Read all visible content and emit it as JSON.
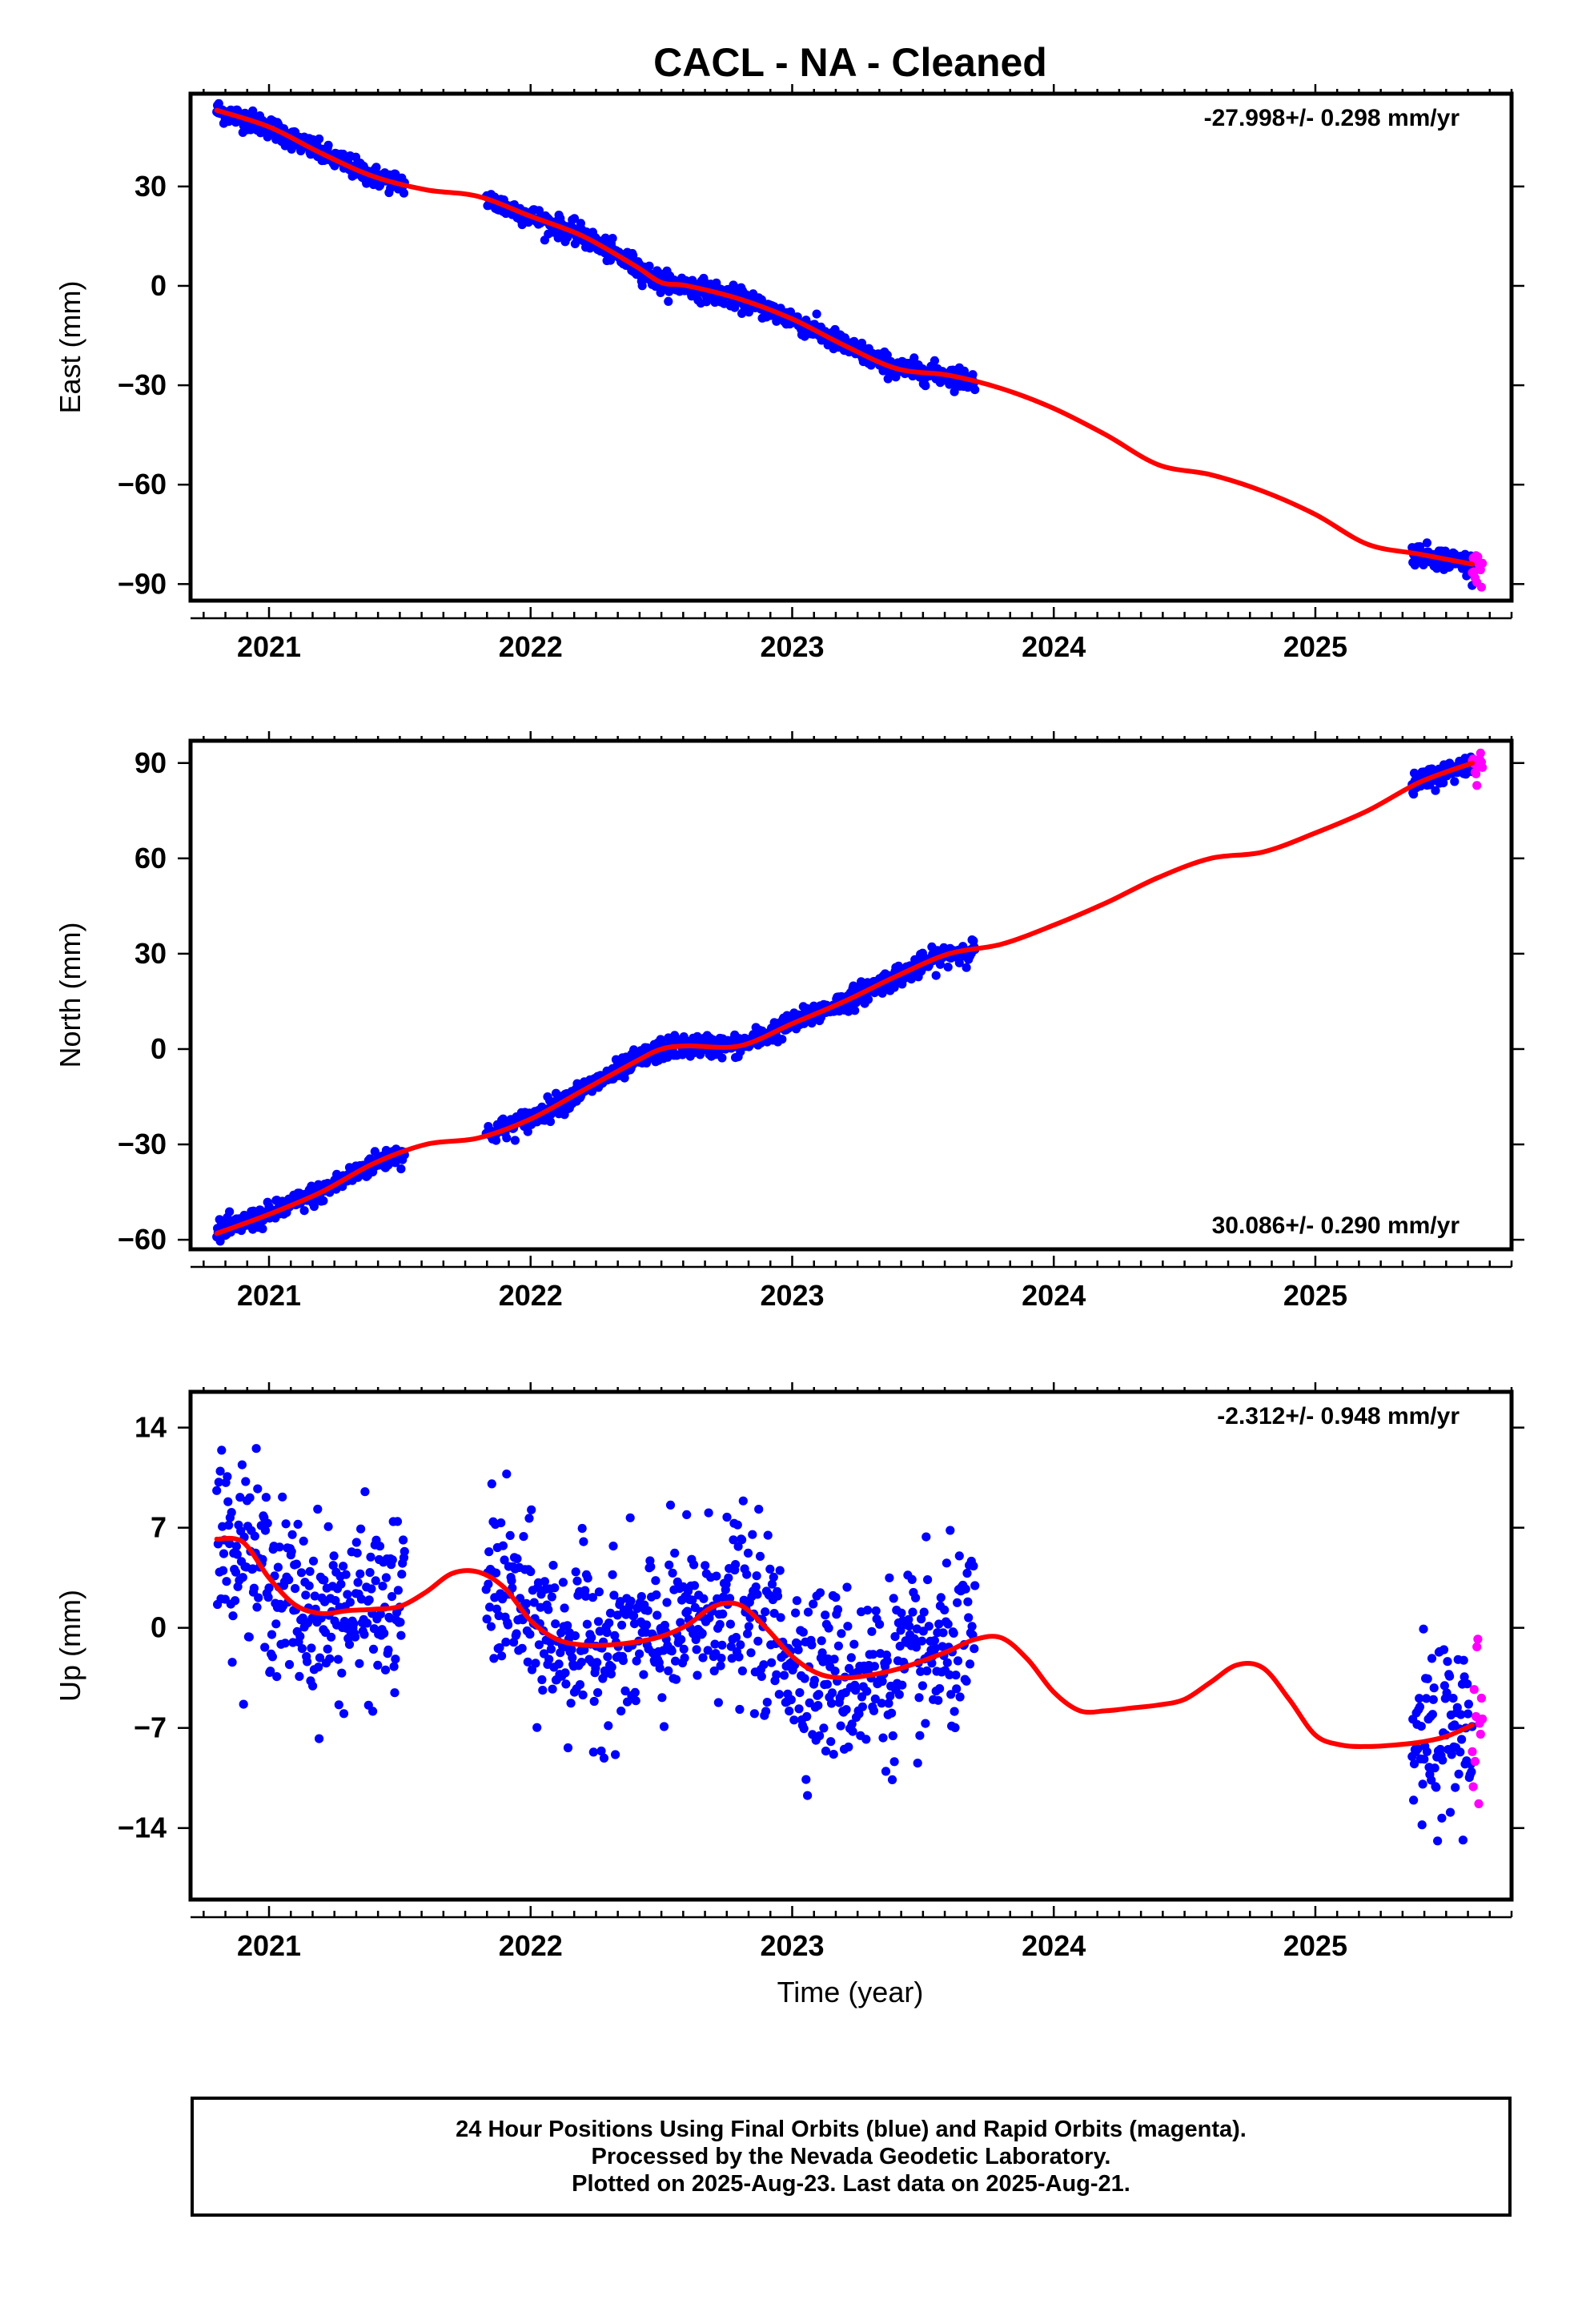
{
  "title": "CACL  - NA - Cleaned",
  "xlabel": "Time (year)",
  "colors": {
    "final": "#0000ff",
    "rapid": "#ff00ff",
    "model": "#ff0000",
    "axis": "#000000"
  },
  "chart_data": [
    {
      "type": "scatter",
      "panel": "east",
      "ylabel": "East (mm)",
      "rate_label": "-27.998+/- 0.298 mm/yr",
      "rate_position": "top-right",
      "xlim": [
        2020.7,
        2025.75
      ],
      "ylim": [
        -95,
        58
      ],
      "xticks": [
        2021,
        2022,
        2023,
        2024,
        2025
      ],
      "xtick_labels": [
        "2021",
        "2022",
        "2023",
        "2024",
        "2025"
      ],
      "yticks": [
        30,
        0,
        -30,
        -60,
        -90
      ],
      "ytick_labels": [
        "30",
        "0",
        "−30",
        "−60",
        "−90"
      ],
      "data_segments": [
        {
          "series": "final",
          "start": 2020.8,
          "end": 2021.52
        },
        {
          "series": "final",
          "start": 2021.83,
          "end": 2023.7
        },
        {
          "series": "final",
          "start": 2025.37,
          "end": 2025.6
        },
        {
          "series": "rapid",
          "start": 2025.6,
          "end": 2025.64
        }
      ],
      "model_curve": {
        "x": [
          2020.8,
          2021.0,
          2021.2,
          2021.4,
          2021.6,
          2021.8,
          2022.0,
          2022.2,
          2022.4,
          2022.5,
          2022.6,
          2022.8,
          2023.0,
          2023.2,
          2023.4,
          2023.6,
          2023.8,
          2024.0,
          2024.2,
          2024.4,
          2024.6,
          2024.8,
          2025.0,
          2025.2,
          2025.4,
          2025.6
        ],
        "y": [
          53,
          48,
          40,
          33,
          29,
          27,
          21,
          15,
          6,
          1,
          0,
          -4,
          -10,
          -18,
          -25,
          -27,
          -31,
          -37,
          -45,
          -54,
          -57,
          -62,
          -69,
          -78,
          -81,
          -84
        ]
      },
      "scatter": {
        "final_sd": 1.6,
        "rapid_sd": 3
      },
      "series": [
        {
          "name": "Final Orbits (blue)",
          "color": "#0000ff"
        },
        {
          "name": "Rapid Orbits (magenta)",
          "color": "#ff00ff"
        }
      ]
    },
    {
      "type": "scatter",
      "panel": "north",
      "ylabel": "North (mm)",
      "rate_label": "30.086+/- 0.290 mm/yr",
      "rate_position": "bottom-right",
      "xlim": [
        2020.7,
        2025.75
      ],
      "ylim": [
        -63,
        97
      ],
      "xticks": [
        2021,
        2022,
        2023,
        2024,
        2025
      ],
      "xtick_labels": [
        "2021",
        "2022",
        "2023",
        "2024",
        "2025"
      ],
      "yticks": [
        90,
        60,
        30,
        0,
        -30,
        -60
      ],
      "ytick_labels": [
        "90",
        "60",
        "30",
        "0",
        "−30",
        "−60"
      ],
      "data_segments": [
        {
          "series": "final",
          "start": 2020.8,
          "end": 2021.52
        },
        {
          "series": "final",
          "start": 2021.83,
          "end": 2023.7
        },
        {
          "series": "final",
          "start": 2025.37,
          "end": 2025.6
        },
        {
          "series": "rapid",
          "start": 2025.6,
          "end": 2025.64
        }
      ],
      "model_curve": {
        "x": [
          2020.8,
          2021.0,
          2021.2,
          2021.4,
          2021.6,
          2021.8,
          2022.0,
          2022.2,
          2022.4,
          2022.5,
          2022.6,
          2022.8,
          2023.0,
          2023.2,
          2023.4,
          2023.6,
          2023.8,
          2024.0,
          2024.2,
          2024.4,
          2024.6,
          2024.8,
          2025.0,
          2025.2,
          2025.4,
          2025.6
        ],
        "y": [
          -58,
          -52,
          -45,
          -36,
          -30,
          -28,
          -22,
          -13,
          -4,
          0,
          1,
          1,
          8,
          15,
          23,
          30,
          33,
          39,
          46,
          54,
          60,
          62,
          68,
          75,
          84,
          90
        ]
      },
      "scatter": {
        "final_sd": 1.7,
        "rapid_sd": 2.5
      },
      "series": [
        {
          "name": "Final Orbits (blue)",
          "color": "#0000ff"
        },
        {
          "name": "Rapid Orbits (magenta)",
          "color": "#ff00ff"
        }
      ]
    },
    {
      "type": "scatter",
      "panel": "up",
      "ylabel": "Up (mm)",
      "rate_label": "-2.312+/- 0.948 mm/yr",
      "rate_position": "top-right",
      "xlim": [
        2020.7,
        2025.75
      ],
      "ylim": [
        -19,
        16.5
      ],
      "xticks": [
        2021,
        2022,
        2023,
        2024,
        2025
      ],
      "xtick_labels": [
        "2021",
        "2022",
        "2023",
        "2024",
        "2025"
      ],
      "yticks": [
        14,
        7,
        0,
        -7,
        -14
      ],
      "ytick_labels": [
        "14",
        "7",
        "0",
        "−7",
        "−14"
      ],
      "data_segments": [
        {
          "series": "final",
          "start": 2020.8,
          "end": 2021.52
        },
        {
          "series": "final",
          "start": 2021.83,
          "end": 2023.7
        },
        {
          "series": "final",
          "start": 2025.37,
          "end": 2025.6
        },
        {
          "series": "rapid",
          "start": 2025.6,
          "end": 2025.64
        }
      ],
      "model_curve": {
        "x": [
          2020.8,
          2020.9,
          2021.0,
          2021.1,
          2021.2,
          2021.3,
          2021.4,
          2021.5,
          2021.6,
          2021.7,
          2021.8,
          2021.9,
          2022.0,
          2022.1,
          2022.2,
          2022.3,
          2022.4,
          2022.5,
          2022.6,
          2022.7,
          2022.8,
          2022.9,
          2023.0,
          2023.1,
          2023.2,
          2023.3,
          2023.4,
          2023.5,
          2023.6,
          2023.7,
          2023.8,
          2023.9,
          2024.0,
          2024.1,
          2024.2,
          2024.3,
          2024.4,
          2024.5,
          2024.6,
          2024.7,
          2024.8,
          2024.9,
          2025.0,
          2025.1,
          2025.2,
          2025.3,
          2025.4,
          2025.5,
          2025.6
        ],
        "y": [
          6.2,
          6.0,
          3.5,
          1.6,
          1.0,
          1.2,
          1.3,
          1.5,
          2.5,
          3.8,
          3.9,
          2.8,
          0.5,
          -0.8,
          -1.2,
          -1.2,
          -1.0,
          -0.6,
          0.2,
          1.5,
          1.6,
          0.0,
          -2.0,
          -3.2,
          -3.5,
          -3.3,
          -2.9,
          -2.3,
          -1.6,
          -0.8,
          -0.7,
          -2.2,
          -4.5,
          -5.8,
          -5.8,
          -5.6,
          -5.4,
          -5.0,
          -3.8,
          -2.6,
          -2.8,
          -5.0,
          -7.5,
          -8.2,
          -8.3,
          -8.2,
          -8.0,
          -7.6,
          -6.8
        ]
      },
      "scatter": {
        "final_sd": 3.0,
        "rapid_sd": 4.0
      },
      "series": [
        {
          "name": "Final Orbits (blue)",
          "color": "#0000ff"
        },
        {
          "name": "Rapid Orbits (magenta)",
          "color": "#ff00ff"
        }
      ]
    }
  ],
  "footer": {
    "line1": "24 Hour Positions Using Final Orbits (blue) and Rapid Orbits (magenta).",
    "line2": "Processed by the Nevada Geodetic Laboratory.",
    "line3": "Plotted on 2025-Aug-23. Last data on 2025-Aug-21."
  }
}
